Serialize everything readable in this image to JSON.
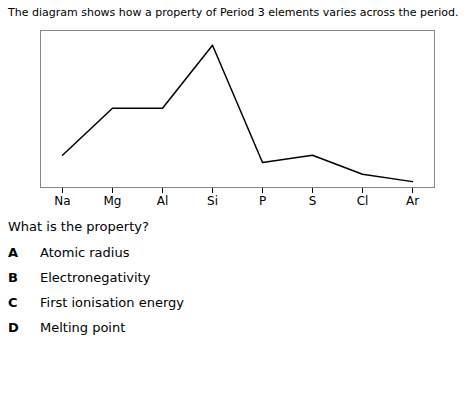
{
  "chart_data": {
    "type": "line",
    "title": "The diagram shows how a property of Period 3 elements varies across the period.",
    "categories": [
      "Na",
      "Mg",
      "Al",
      "Si",
      "P",
      "S",
      "Cl",
      "Ar"
    ],
    "values": [
      0.2,
      0.52,
      0.52,
      0.95,
      0.15,
      0.2,
      0.07,
      0.02
    ],
    "color": "#000000",
    "ylim": [
      -0.02,
      1.05
    ],
    "yticks": [],
    "tick_labels": "x",
    "grid": false,
    "annotations": [
      {
        "text": "What is the property?"
      },
      {
        "label": "A",
        "text": "Atomic radius"
      },
      {
        "label": "B",
        "text": "Electronegativity"
      },
      {
        "label": "C",
        "text": "First ionisation energy"
      },
      {
        "label": "D",
        "text": "Melting point"
      }
    ]
  }
}
